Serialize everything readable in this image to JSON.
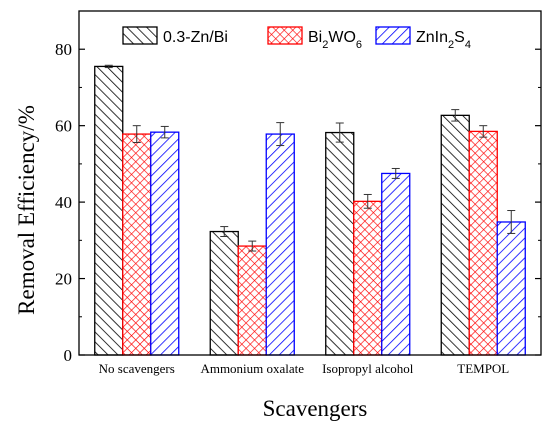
{
  "chart_data": {
    "type": "bar",
    "categories": [
      "No scavengers",
      "Ammonium oxalate",
      "Isopropyl alcohol",
      "TEMPOL"
    ],
    "series": [
      {
        "name": "0.3-Zn/Bi",
        "legend": {
          "main": "0.3-Zn/Bi",
          "sub1": "",
          "mid": "",
          "sub2": ""
        },
        "values": [
          75.5,
          32.3,
          58.2,
          62.7
        ],
        "errors": [
          0.3,
          1.3,
          2.5,
          1.5
        ],
        "color": "#000000",
        "pattern": "diagonal"
      },
      {
        "name": "Bi2WO6",
        "legend": {
          "main": "Bi",
          "sub1": "2",
          "mid": "WO",
          "sub2": "6"
        },
        "values": [
          57.8,
          28.5,
          40.2,
          58.5
        ],
        "errors": [
          2.2,
          1.3,
          1.8,
          1.5
        ],
        "color": "#ff0000",
        "pattern": "crosshatch"
      },
      {
        "name": "ZnIn2S4",
        "legend": {
          "main": "ZnIn",
          "sub1": "2",
          "mid": "S",
          "sub2": "4"
        },
        "values": [
          58.3,
          57.8,
          47.5,
          34.8
        ],
        "errors": [
          1.5,
          3.0,
          1.3,
          3.0
        ],
        "color": "#0000ff",
        "pattern": "antidiagonal"
      }
    ],
    "xlabel": "Scavengers",
    "ylabel": "Removal Efficiency/%",
    "ylim": [
      0,
      90
    ],
    "yticks": [
      0,
      20,
      40,
      60,
      80
    ],
    "legend_position": "top",
    "grid": false
  }
}
